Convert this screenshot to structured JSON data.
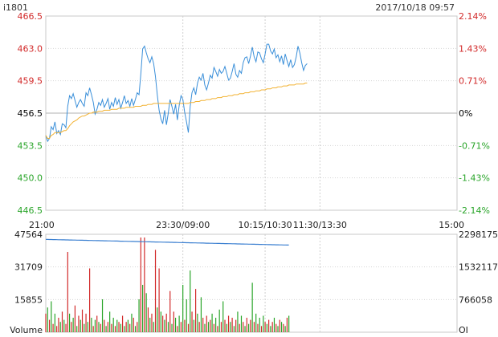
{
  "header": {
    "symbol": "i1801",
    "datetime": "2017/10/18 09:57"
  },
  "colors": {
    "price_line": "#3a8fd9",
    "avg_line": "#f2b233",
    "oi_line": "#3a7fd0",
    "up": "#d22a2a",
    "down": "#2aa52a",
    "neutral": "#000000",
    "grid": "#c8c8c8"
  },
  "chart_data": {
    "type": "line",
    "price_axis": {
      "ylim": [
        446.5,
        466.5
      ],
      "left_ticks": [
        "466.5",
        "463.0",
        "459.5",
        "456.5",
        "453.5",
        "450.0",
        "446.5"
      ],
      "right_ticks": [
        "2.14%",
        "1.43%",
        "0.71%",
        "0%",
        "-0.71%",
        "-1.43%",
        "-2.14%"
      ],
      "base_price": 456.5
    },
    "time_axis": {
      "labels": [
        "21:00",
        "23:30/09:00",
        "10:15/10:30",
        "11:30/13:30",
        "15:00"
      ],
      "total_slots": 225,
      "label_slots": [
        0,
        75,
        120,
        150,
        225
      ]
    },
    "series": [
      {
        "values": [
          454.2,
          453.6,
          453.9,
          455.1,
          454.8,
          455.6,
          454.4,
          454.7,
          454.3,
          455.4,
          455.3,
          455.0,
          457.2,
          458.3,
          458.0,
          458.5,
          457.8,
          457.1,
          457.6,
          457.9,
          457.5,
          457.2,
          458.6,
          458.3,
          459.1,
          458.4,
          457.6,
          456.4,
          456.9,
          457.6,
          457.3,
          457.9,
          457.1,
          457.5,
          458.0,
          456.9,
          457.6,
          457.2,
          458.1,
          457.4,
          457.9,
          457.0,
          457.6,
          458.3,
          457.5,
          457.8,
          457.2,
          458.0,
          457.3,
          457.9,
          458.6,
          458.4,
          460.5,
          463.1,
          463.4,
          462.7,
          462.1,
          461.7,
          462.3,
          461.6,
          460.3,
          458.4,
          456.8,
          455.9,
          455.4,
          456.8,
          455.3,
          456.5,
          457.9,
          457.2,
          456.4,
          457.4,
          455.8,
          457.3,
          458.3,
          457.9,
          456.6,
          455.6,
          454.5,
          457.2,
          458.6,
          459.1,
          458.4,
          459.6,
          460.2,
          459.9,
          460.6,
          459.4,
          458.9,
          459.6,
          460.4,
          460.1,
          461.2,
          460.8,
          460.3,
          461.0,
          460.6,
          460.8,
          461.3,
          460.6,
          459.9,
          460.1,
          460.8,
          461.6,
          460.5,
          460.2,
          460.9,
          460.6,
          461.7,
          462.2,
          462.3,
          461.6,
          462.4,
          463.3,
          462.3,
          461.8,
          462.8,
          462.7,
          462.1,
          461.7,
          462.6,
          463.6,
          463.6,
          462.9,
          462.6,
          463.1,
          462.2,
          462.5,
          461.8,
          462.4,
          461.5,
          462.6,
          461.9,
          461.3,
          462.0,
          461.2,
          461.5,
          462.3,
          463.4,
          462.7,
          461.7,
          460.9,
          461.4,
          461.6
        ]
      },
      {
        "values": [
          454.2,
          453.9,
          453.9,
          454.2,
          454.3,
          454.5,
          454.5,
          454.5,
          454.5,
          454.6,
          454.7,
          454.7,
          454.9,
          455.2,
          455.4,
          455.6,
          455.7,
          455.8,
          456.0,
          456.1,
          456.2,
          456.2,
          456.3,
          456.4,
          456.5,
          456.5,
          456.6,
          456.6,
          456.6,
          456.7,
          456.7,
          456.7,
          456.8,
          456.8,
          456.8,
          456.8,
          456.9,
          456.9,
          456.9,
          456.9,
          457.0,
          457.0,
          457.0,
          457.0,
          457.1,
          457.1,
          457.1,
          457.1,
          457.1,
          457.2,
          457.2,
          457.2,
          457.2,
          457.3,
          457.3,
          457.3,
          457.4,
          457.4,
          457.4,
          457.5,
          457.5,
          457.5,
          457.5,
          457.5,
          457.5,
          457.5,
          457.5,
          457.5,
          457.5,
          457.5,
          457.5,
          457.5,
          457.5,
          457.5,
          457.5,
          457.5,
          457.5,
          457.5,
          457.5,
          457.6,
          457.6,
          457.6,
          457.7,
          457.7,
          457.7,
          457.8,
          457.8,
          457.8,
          457.9,
          457.9,
          457.9,
          458.0,
          458.0,
          458.0,
          458.1,
          458.1,
          458.1,
          458.2,
          458.2,
          458.2,
          458.3,
          458.3,
          458.3,
          458.4,
          458.4,
          458.4,
          458.5,
          458.5,
          458.5,
          458.6,
          458.6,
          458.6,
          458.7,
          458.7,
          458.7,
          458.8,
          458.8,
          458.8,
          458.9,
          458.9,
          458.9,
          459.0,
          459.0,
          459.0,
          459.1,
          459.1,
          459.1,
          459.2,
          459.2,
          459.2,
          459.3,
          459.3,
          459.3,
          459.4,
          459.4,
          459.4,
          459.4,
          459.5,
          459.5,
          459.5,
          459.5,
          459.5,
          459.6,
          459.6
        ]
      }
    ],
    "volume_axis": {
      "left_ticks": [
        "47564",
        "31709",
        "15855",
        "Volume"
      ],
      "right_ticks": [
        "2298175",
        "1532117",
        "766058",
        "OI"
      ],
      "vmax": 47564,
      "oi_max": 2298175
    },
    "volume_values": [
      9000,
      12000,
      6000,
      15000,
      4000,
      9000,
      3000,
      7000,
      5000,
      10000,
      6000,
      4000,
      39000,
      9000,
      5000,
      7000,
      13000,
      3000,
      8000,
      6000,
      11000,
      4000,
      9000,
      5000,
      31000,
      7000,
      3000,
      6000,
      8000,
      5000,
      4000,
      16000,
      6000,
      3000,
      5000,
      10000,
      4000,
      7000,
      3000,
      6000,
      5000,
      4000,
      8000,
      3000,
      5000,
      6000,
      4000,
      9000,
      7000,
      3000,
      5000,
      16000,
      46000,
      23000,
      46000,
      19000,
      12000,
      7000,
      9000,
      5000,
      40000,
      12000,
      31000,
      10000,
      8000,
      6000,
      9000,
      5000,
      20000,
      4000,
      10000,
      7000,
      3000,
      8000,
      5000,
      23000,
      6000,
      16000,
      4000,
      30000,
      10000,
      6000,
      21000,
      9000,
      5000,
      17000,
      7000,
      4000,
      8000,
      5000,
      6000,
      9000,
      4000,
      7000,
      3000,
      11000,
      5000,
      15000,
      6000,
      4000,
      8000,
      5000,
      7000,
      3000,
      6000,
      10000,
      4000,
      8000,
      5000,
      3000,
      7000,
      4000,
      6000,
      24000,
      5000,
      9000,
      4000,
      7000,
      3000,
      8000,
      5000,
      4000,
      6000,
      3000,
      5000,
      7000,
      4000,
      3000,
      6000,
      5000,
      4000,
      3000,
      7000,
      8000
    ],
    "volume_colors": [
      "up",
      "down",
      "up",
      "down",
      "up",
      "down",
      "up",
      "up",
      "down",
      "up",
      "down",
      "up",
      "up",
      "down",
      "up",
      "down",
      "up",
      "down",
      "up",
      "down",
      "up",
      "down",
      "up",
      "down",
      "up",
      "down",
      "up",
      "down",
      "up",
      "down",
      "up",
      "down",
      "up",
      "down",
      "up",
      "down",
      "up",
      "down",
      "up",
      "down",
      "up",
      "down",
      "up",
      "down",
      "up",
      "down",
      "up",
      "down",
      "up",
      "down",
      "up",
      "down",
      "up",
      "down",
      "up",
      "down",
      "up",
      "down",
      "up",
      "down",
      "up",
      "down",
      "up",
      "down",
      "up",
      "down",
      "up",
      "down",
      "up",
      "down",
      "up",
      "down",
      "up",
      "down",
      "up",
      "down",
      "up",
      "down",
      "up",
      "down",
      "up",
      "down",
      "up",
      "down",
      "up",
      "down",
      "up",
      "down",
      "up",
      "down",
      "up",
      "down",
      "up",
      "down",
      "up",
      "down",
      "up",
      "down",
      "up",
      "down",
      "up",
      "down",
      "up",
      "down",
      "up",
      "down",
      "up",
      "down",
      "up",
      "down",
      "up",
      "down",
      "up",
      "down",
      "up",
      "down",
      "up",
      "down",
      "up",
      "down",
      "up",
      "down",
      "up",
      "down",
      "up",
      "down",
      "up",
      "down",
      "up",
      "down",
      "up",
      "down",
      "up",
      "down"
    ],
    "oi_values": [
      2180000,
      2178000,
      2176000,
      2175000,
      2174000,
      2173000,
      2172000,
      2171000,
      2170000,
      2169000,
      2168000,
      2167000,
      2166000,
      2165000,
      2164000,
      2163000,
      2162000,
      2161000,
      2160000,
      2159000,
      2158000,
      2157000,
      2156000,
      2155000,
      2154000,
      2153000,
      2152000,
      2151000,
      2150000,
      2149000,
      2148000,
      2147000,
      2146000,
      2145000,
      2144000,
      2143000,
      2142000,
      2141000,
      2140000,
      2139000,
      2138000,
      2137000,
      2136000,
      2135000,
      2134000,
      2133000,
      2132000,
      2131000,
      2130000,
      2129000,
      2128000,
      2127000,
      2126000,
      2125000,
      2124000,
      2123000,
      2122000,
      2121000,
      2120000,
      2119000,
      2118000,
      2117000,
      2116000,
      2115000,
      2114000,
      2113000,
      2112000,
      2111000,
      2110000,
      2109000,
      2108000,
      2107000,
      2106000,
      2105000,
      2104000,
      2103000,
      2102000,
      2101000,
      2100000,
      2099000,
      2098000,
      2097000,
      2096000,
      2095000,
      2094000,
      2093000,
      2092000,
      2091000,
      2090000,
      2089000,
      2088000,
      2087000,
      2086000,
      2085000,
      2084000,
      2083000,
      2082000,
      2081000,
      2080000,
      2079000,
      2078000,
      2077000,
      2076000,
      2075000,
      2074000,
      2073000,
      2072000,
      2071000,
      2070000,
      2069000,
      2068000,
      2067000,
      2066000,
      2065000,
      2064000,
      2063000,
      2062000,
      2061000,
      2060000,
      2059000,
      2058000,
      2057000,
      2056000,
      2055000,
      2054000,
      2053000,
      2052000,
      2051000,
      2050000,
      2049000,
      2048000,
      2047000,
      2046000,
      2045000
    ]
  }
}
